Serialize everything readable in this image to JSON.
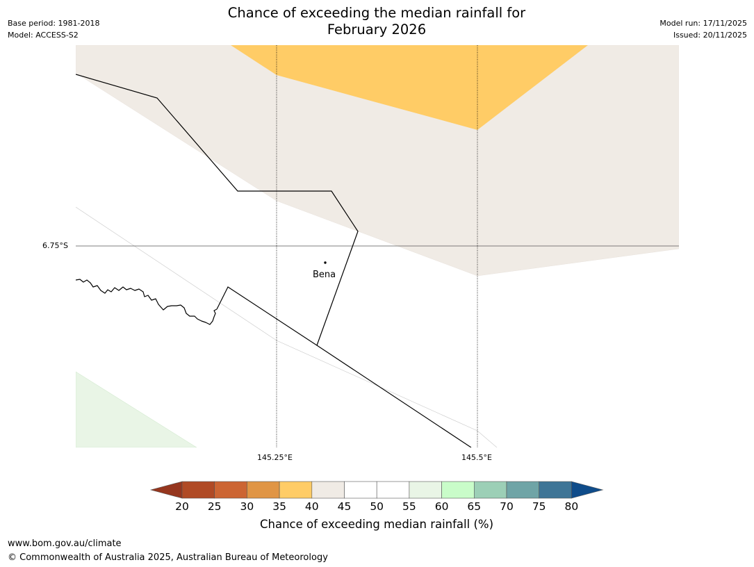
{
  "title": {
    "line1": "Chance of exceeding the median rainfall for",
    "line2": "February 2026"
  },
  "meta": {
    "base_period": "Base period: 1981-2018",
    "model": "Model: ACCESS-S2",
    "model_run": "Model run: 17/11/2025",
    "issued": "Issued: 20/11/2025"
  },
  "map": {
    "lat_label": "6.75°S",
    "lon_labels": [
      "145.25°E",
      "145.5°E"
    ],
    "town": "Bena"
  },
  "colorbar": {
    "title": "Chance of exceeding median rainfall (%)",
    "ticks": [
      "20",
      "25",
      "30",
      "35",
      "40",
      "45",
      "50",
      "55",
      "60",
      "65",
      "70",
      "75",
      "80"
    ],
    "under_color": "#96361e",
    "over_color": "#0f4c8a",
    "colors": [
      "#b04a25",
      "#cc6533",
      "#e09545",
      "#ffcc66",
      "#f0ebe5",
      "#ffffff",
      "#ffffff",
      "#e9f5e6",
      "#c9fcc9",
      "#9ccfb6",
      "#6fa4a6",
      "#3e7596"
    ]
  },
  "footer": {
    "url": "www.bom.gov.au/climate",
    "copyright": "© Commonwealth of Australia 2025, Australian Bureau of Meteorology"
  }
}
